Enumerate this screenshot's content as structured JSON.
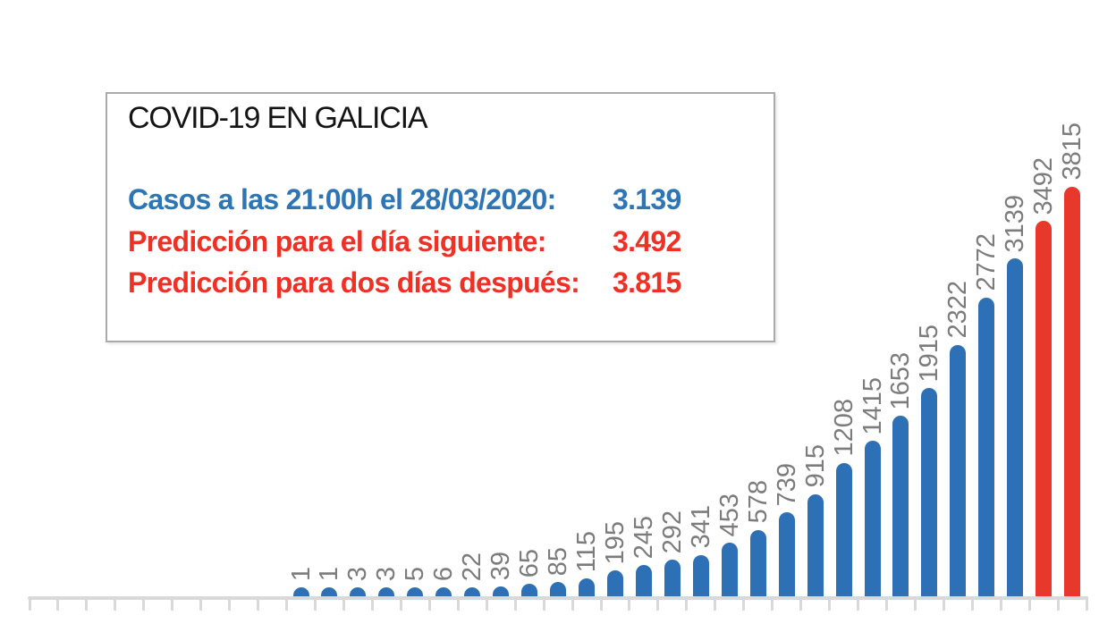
{
  "callout": {
    "title": "COVID-19 EN GALICIA",
    "lines": [
      {
        "label": "Casos a las 21:00h el 28/03/2020:",
        "value": "3.139",
        "color": "#2e75b6"
      },
      {
        "label": "Predicción para el día siguiente:",
        "value": "3.492",
        "color": "#ee3124"
      },
      {
        "label": "Predicción para dos días después:",
        "value": "3.815",
        "color": "#ee3124"
      }
    ]
  },
  "chart_data": {
    "type": "bar",
    "title": "COVID-19 EN GALICIA",
    "xlabel": "",
    "ylabel": "",
    "ylim": [
      0,
      3900
    ],
    "grid": false,
    "legend": false,
    "bar_value_labels_rotated_degrees": 90,
    "label_color": "#7c7c7c",
    "axis_color": "#d9d9d9",
    "leading_empty_slots": 9,
    "series": [
      {
        "name": "casos-confirmados",
        "color": "#2e70b5",
        "values": [
          1,
          1,
          3,
          3,
          5,
          6,
          22,
          39,
          65,
          85,
          115,
          195,
          245,
          292,
          341,
          453,
          578,
          739,
          915,
          1208,
          1415,
          1653,
          1915,
          2322,
          2772,
          3139
        ]
      },
      {
        "name": "prediccion",
        "color": "#e8372b",
        "values": [
          3492,
          3815
        ]
      }
    ]
  }
}
